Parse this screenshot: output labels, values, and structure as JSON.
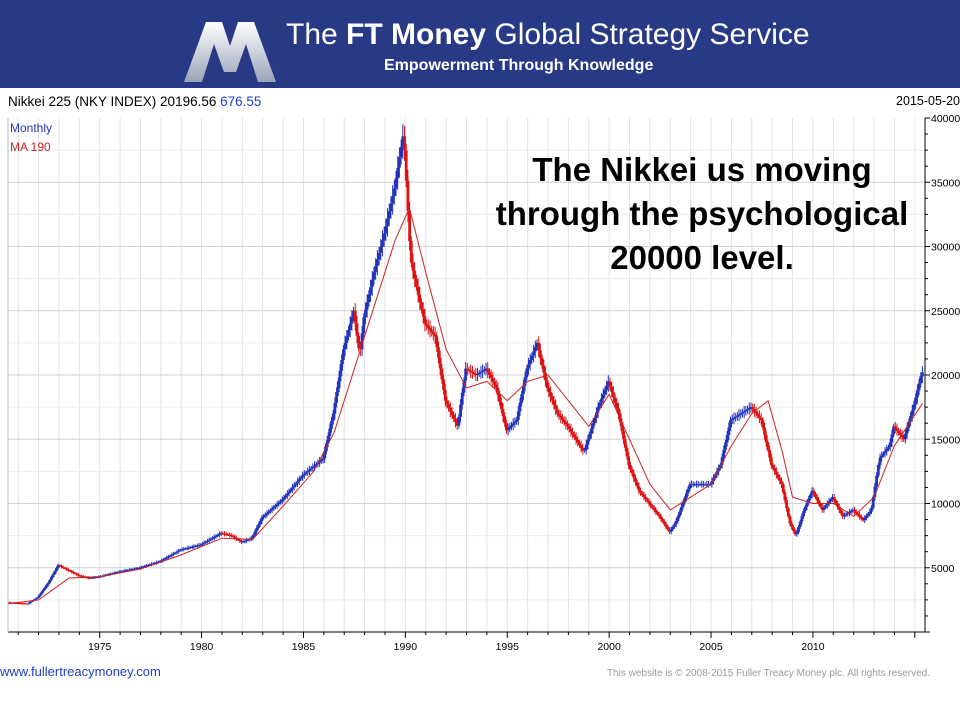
{
  "banner": {
    "title_prefix": "The",
    "title_bold": "FT Money",
    "title_suffix": "Global Strategy Service",
    "subtitle": "Empowerment Through Knowledge"
  },
  "header": {
    "title": "Nikkei 225 (NKY INDEX) 20196.56",
    "change": "676.55",
    "date": "2015-05-20"
  },
  "legend": {
    "monthly": "Monthly",
    "ma": "MA 190"
  },
  "annotation": "The Nikkei us moving through the psychological 20000 level.",
  "footer": {
    "website": "www.fullertreacymoney.com",
    "copyright": "This website is © 2008-2015 Fuller Treacy Money plc. All rights reserved."
  },
  "colors": {
    "banner_bg": "#283a86",
    "up_candle": "#2233bb",
    "down_candle": "#dd1111",
    "ma_line": "#cc2222",
    "grid": "#dddddd"
  },
  "chart_data": {
    "type": "line",
    "title": "Nikkei 225 (NKY INDEX) 20196.56 676.55",
    "xlabel": "",
    "ylabel": "",
    "xlim": [
      1970.5,
      2015.5
    ],
    "ylim": [
      0,
      40000
    ],
    "grid": true,
    "y_ticks": [
      5000,
      10000,
      15000,
      20000,
      25000,
      30000,
      35000,
      40000
    ],
    "y_tick_labels": [
      "5000",
      "10000",
      "15000",
      "20000",
      "25000",
      "30000",
      "35000",
      "40000"
    ],
    "x_ticks": [
      1975,
      1980,
      1985,
      1990,
      1995,
      2000,
      2005,
      2010
    ],
    "x_tick_labels": [
      "1975",
      "1980",
      "1985",
      "1990",
      "1995",
      "2000",
      "2005",
      "2010"
    ],
    "series": [
      {
        "name": "Monthly",
        "x": [
          1970.5,
          1971.5,
          1972.0,
          1972.5,
          1973.0,
          1973.5,
          1974.0,
          1974.5,
          1975.0,
          1975.5,
          1976.0,
          1977.0,
          1978.0,
          1979.0,
          1980.0,
          1981.0,
          1981.5,
          1982.0,
          1982.5,
          1983.0,
          1984.0,
          1985.0,
          1986.0,
          1986.5,
          1987.0,
          1987.5,
          1987.8,
          1988.0,
          1988.5,
          1989.0,
          1989.5,
          1989.95,
          1990.3,
          1990.7,
          1991.0,
          1991.5,
          1992.0,
          1992.6,
          1993.0,
          1993.5,
          1994.0,
          1994.5,
          1995.0,
          1995.5,
          1996.0,
          1996.5,
          1997.0,
          1997.5,
          1998.0,
          1998.8,
          1999.5,
          2000.0,
          2000.5,
          2001.0,
          2001.5,
          2002.0,
          2002.5,
          2003.0,
          2003.3,
          2004.0,
          2005.0,
          2005.5,
          2006.0,
          2006.5,
          2007.0,
          2007.5,
          2008.0,
          2008.5,
          2008.9,
          2009.2,
          2009.6,
          2010.0,
          2010.5,
          2011.0,
          2011.5,
          2012.0,
          2012.5,
          2012.9,
          2013.3,
          2013.8,
          2014.0,
          2014.5,
          2015.0,
          2015.38
        ],
        "values": [
          2300,
          2200,
          2700,
          3800,
          5200,
          4800,
          4400,
          4200,
          4300,
          4500,
          4700,
          5000,
          5500,
          6400,
          6800,
          7700,
          7500,
          7000,
          7300,
          8900,
          10300,
          12200,
          13500,
          17000,
          22000,
          25000,
          21500,
          24500,
          28000,
          31000,
          34500,
          38900,
          29000,
          26000,
          24000,
          23000,
          18000,
          16000,
          20500,
          20000,
          20500,
          19000,
          15700,
          16500,
          20500,
          22500,
          19000,
          17000,
          16000,
          14000,
          17500,
          19500,
          17000,
          13000,
          11000,
          10000,
          9000,
          7800,
          8500,
          11500,
          11500,
          13000,
          16500,
          17000,
          17500,
          16500,
          13000,
          11500,
          8500,
          7500,
          9500,
          11000,
          9500,
          10500,
          9000,
          9500,
          8700,
          9500,
          13500,
          14500,
          16000,
          15000,
          17700,
          20196.56
        ]
      },
      {
        "name": "MA 190",
        "x": [
          1970.5,
          1972.0,
          1973.5,
          1975.0,
          1977.0,
          1979.0,
          1981.0,
          1982.5,
          1984.0,
          1985.5,
          1986.5,
          1987.5,
          1988.5,
          1989.5,
          1990.2,
          1991.0,
          1992.0,
          1993.0,
          1994.0,
          1995.0,
          1996.0,
          1997.0,
          1998.0,
          1999.0,
          2000.0,
          2001.0,
          2002.0,
          2003.0,
          2004.0,
          2005.0,
          2006.0,
          2007.0,
          2007.8,
          2008.5,
          2009.0,
          2010.0,
          2011.0,
          2012.0,
          2013.0,
          2014.0,
          2015.38
        ],
        "values": [
          2200,
          2500,
          4200,
          4300,
          4900,
          6000,
          7300,
          7200,
          9800,
          12500,
          15500,
          20500,
          25500,
          30500,
          33000,
          28000,
          22000,
          19000,
          19500,
          18000,
          19500,
          20000,
          18000,
          16000,
          18500,
          15000,
          11500,
          9500,
          10500,
          11500,
          14500,
          17000,
          18000,
          14000,
          10500,
          10000,
          10000,
          9000,
          10500,
          14500,
          17800
        ]
      }
    ]
  }
}
